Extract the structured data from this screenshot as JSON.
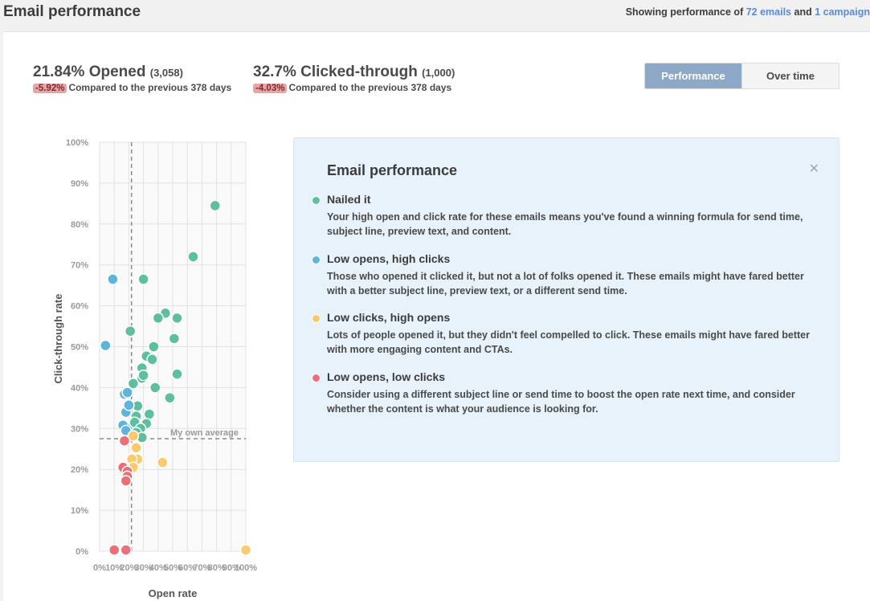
{
  "header": {
    "title": "Email performance",
    "showing_prefix": "Showing performance of",
    "emails_link": "72 emails",
    "and_text": "and",
    "campaigns_link": "1 campaign"
  },
  "stats": {
    "opened": {
      "main": "21.84% Opened",
      "count": "(3,058)",
      "delta": "-5.92%",
      "compare": "Compared to the previous 378 days"
    },
    "clicked": {
      "main": "32.7% Clicked-through",
      "count": "(1,000)",
      "delta": "-4.03%",
      "compare": "Compared to the previous 378 days"
    }
  },
  "toggle": {
    "performance": "Performance",
    "over_time": "Over time"
  },
  "chart_data": {
    "type": "scatter",
    "xlabel": "Open rate",
    "ylabel": "Click-through rate",
    "xlim": [
      0,
      100
    ],
    "ylim": [
      0,
      100
    ],
    "x_ticks": [
      "0%",
      "10%",
      "20%",
      "30%",
      "40%",
      "50%",
      "60%",
      "70%",
      "80%",
      "90%",
      "100%"
    ],
    "y_ticks": [
      "0%",
      "10%",
      "20%",
      "30%",
      "40%",
      "50%",
      "60%",
      "70%",
      "80%",
      "90%",
      "100%"
    ],
    "reference_lines": {
      "x": 21.8,
      "y": 27.5,
      "label": "My own average"
    },
    "grid": true,
    "colors": {
      "nailed": "#5dbfa0",
      "low_opens_high_clicks": "#5bb5dc",
      "low_clicks_high_opens": "#fdc96b",
      "low_opens_low_clicks": "#ee6e77"
    },
    "series": [
      {
        "name": "Nailed it",
        "color": "#5dbfa0",
        "points": [
          [
            79,
            84.5
          ],
          [
            64,
            72
          ],
          [
            30,
            66.5
          ],
          [
            21,
            53.8
          ],
          [
            45,
            58.2
          ],
          [
            40,
            57
          ],
          [
            53,
            57
          ],
          [
            37,
            50
          ],
          [
            51,
            52
          ],
          [
            32,
            47.7
          ],
          [
            36,
            46.9
          ],
          [
            29,
            44.8
          ],
          [
            29,
            42.3
          ],
          [
            30,
            43
          ],
          [
            23,
            41
          ],
          [
            53,
            43.3
          ],
          [
            38,
            40
          ],
          [
            48,
            37.5
          ],
          [
            26,
            35.5
          ],
          [
            34,
            33.5
          ],
          [
            25,
            33
          ],
          [
            32,
            31.2
          ],
          [
            21,
            30
          ],
          [
            24,
            31.5
          ],
          [
            28,
            30
          ],
          [
            25,
            29
          ],
          [
            29,
            27.8
          ]
        ]
      },
      {
        "name": "Low opens, high clicks",
        "color": "#5bb5dc",
        "points": [
          [
            9,
            66.5
          ],
          [
            4,
            50.3
          ],
          [
            17,
            38.4
          ],
          [
            19,
            38.8
          ],
          [
            18,
            34
          ],
          [
            16,
            30.8
          ],
          [
            18,
            29.5
          ],
          [
            20,
            35.7
          ]
        ]
      },
      {
        "name": "Low clicks, high opens",
        "color": "#fdc96b",
        "points": [
          [
            25,
            25.3
          ],
          [
            26,
            22.5
          ],
          [
            22,
            22.5
          ],
          [
            23,
            20.5
          ],
          [
            43,
            21.7
          ],
          [
            100,
            0.3
          ],
          [
            23,
            28.2
          ]
        ]
      },
      {
        "name": "Low opens, low clicks",
        "color": "#ee6e77",
        "points": [
          [
            17,
            27
          ],
          [
            16,
            20.5
          ],
          [
            19,
            19.5
          ],
          [
            19,
            18.3
          ],
          [
            18,
            17.2
          ],
          [
            10,
            0.3
          ],
          [
            18,
            0.3
          ]
        ]
      }
    ]
  },
  "legend": {
    "title": "Email performance",
    "items": [
      {
        "name": "Nailed it",
        "color": "#5dbfa0",
        "desc": "Your high open and click rate for these emails means you've found a winning formula for send time, subject line, preview text, and content."
      },
      {
        "name": "Low opens, high clicks",
        "color": "#5bb5dc",
        "desc": "Those who opened it clicked it, but not a lot of folks opened it. These emails might have fared better with a better subject line, preview text, or a different send time."
      },
      {
        "name": "Low clicks, high opens",
        "color": "#fdc96b",
        "desc": "Lots of people opened it, but they didn't feel compelled to click. These emails might have fared better with more engaging content and CTAs."
      },
      {
        "name": "Low opens, low clicks",
        "color": "#ee6e77",
        "desc": "Consider using a different subject line or send time to boost the open rate next time, and consider whether the content is what your audience is looking for."
      }
    ]
  }
}
